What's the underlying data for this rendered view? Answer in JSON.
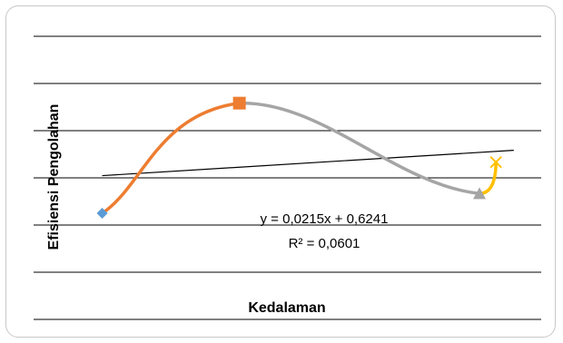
{
  "chart_data": {
    "type": "line",
    "title": "",
    "xlabel": "Kedalaman",
    "ylabel": "Efisiensi Pengolahan",
    "grid": true,
    "legend": "none",
    "ylim": [
      0.4,
      1.0
    ],
    "xlim": [
      0.5,
      4.2
    ],
    "series": [
      {
        "color": "#ED7D31",
        "x": [
          1,
          2
        ],
        "y": [
          0.55,
          0.83
        ],
        "start_marker": "diamond",
        "start_color": "#5B9BD5",
        "end_marker": "square"
      },
      {
        "color": "#A5A5A5",
        "x": [
          2,
          3.75
        ],
        "y": [
          0.83,
          0.6
        ],
        "end_marker": "triangle"
      },
      {
        "color": "#FFC000",
        "x": [
          3.75,
          3.87
        ],
        "y": [
          0.6,
          0.68
        ],
        "end_marker": "x"
      }
    ],
    "trendline": {
      "type": "linear",
      "slope": 0.0215,
      "intercept": 0.6241,
      "x_range": [
        1,
        4
      ],
      "equation": "y = 0,0215x + 0,6241",
      "r_squared": "R² = 0,0601",
      "color": "#000000"
    }
  }
}
